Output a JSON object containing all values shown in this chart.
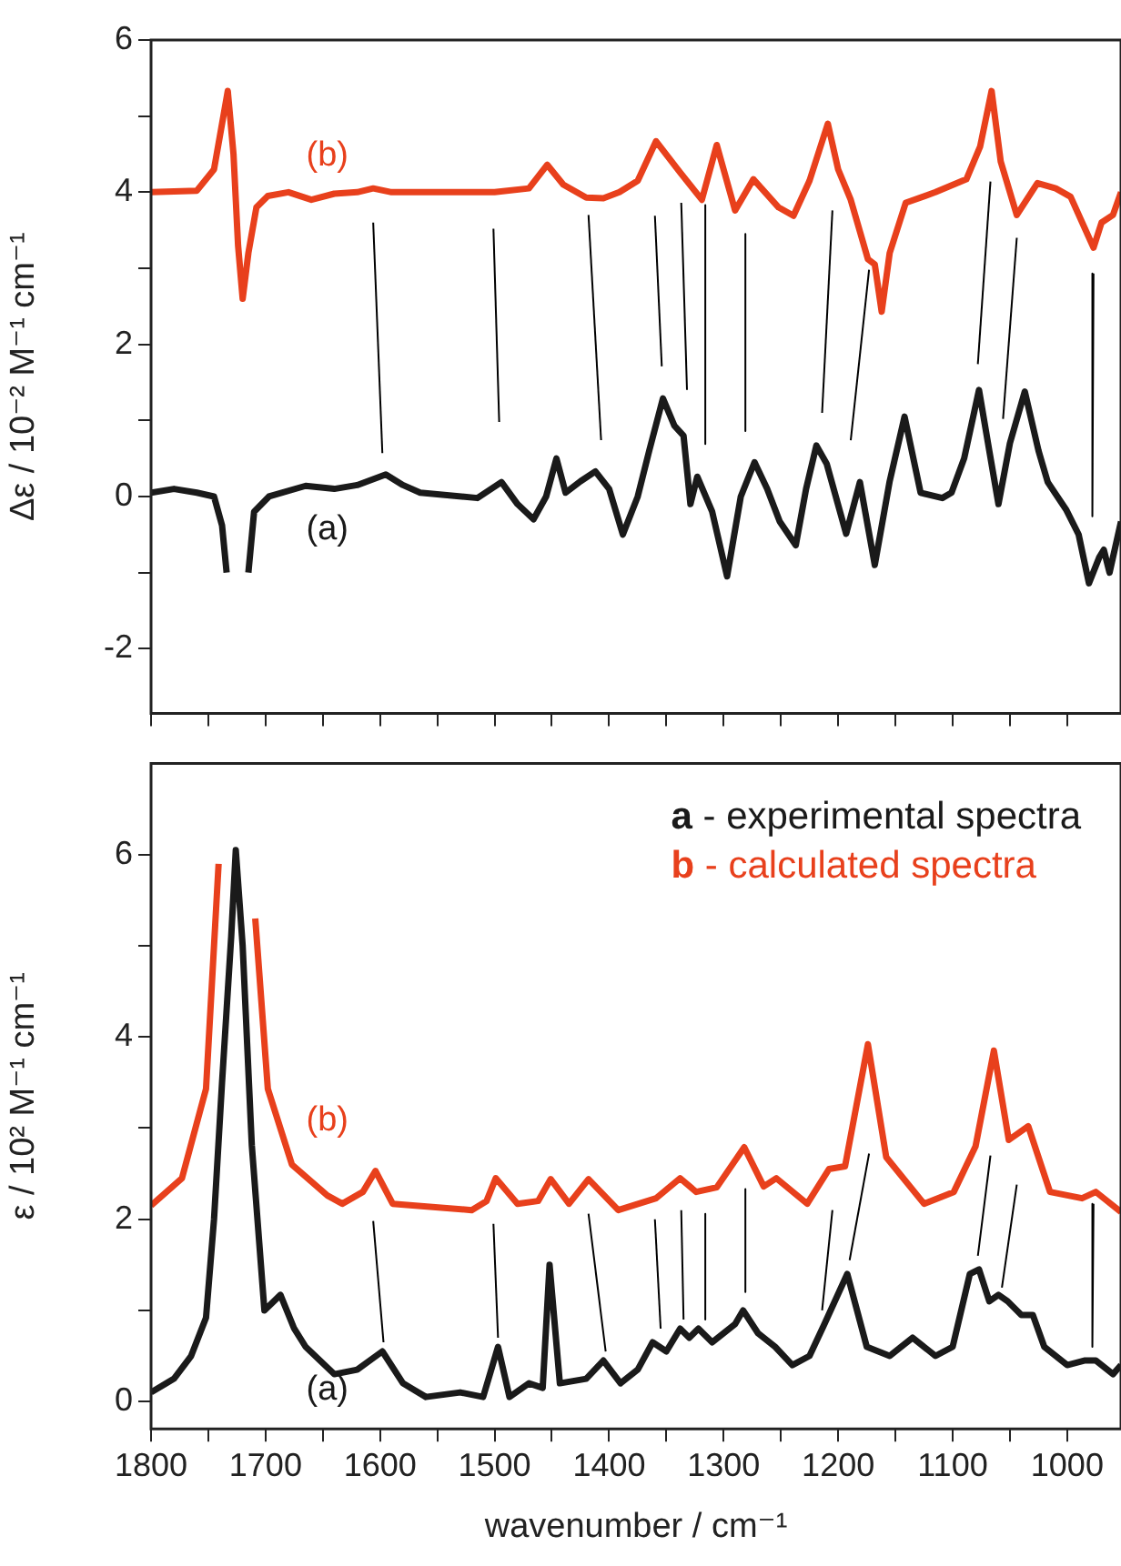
{
  "chart_data": [
    {
      "type": "line",
      "ylabel": "Δε / 10⁻² M⁻¹ cm⁻¹",
      "xlim": [
        1800,
        953
      ],
      "xticks": [
        {
          "value": 1800,
          "label": null
        },
        {
          "value": 1750,
          "label": null
        },
        {
          "value": 1700,
          "label": null
        },
        {
          "value": 1650,
          "label": null
        },
        {
          "value": 1600,
          "label": null
        },
        {
          "value": 1550,
          "label": null
        },
        {
          "value": 1500,
          "label": null
        },
        {
          "value": 1450,
          "label": null
        },
        {
          "value": 1400,
          "label": null
        },
        {
          "value": 1350,
          "label": null
        },
        {
          "value": 1300,
          "label": null
        },
        {
          "value": 1250,
          "label": null
        },
        {
          "value": 1200,
          "label": null
        },
        {
          "value": 1150,
          "label": null
        },
        {
          "value": 1100,
          "label": null
        },
        {
          "value": 1050,
          "label": null
        },
        {
          "value": 1000,
          "label": null
        }
      ],
      "ylim": [
        -2.85,
        6
      ],
      "yticks": [
        -2,
        {
          "value": -1,
          "label": null
        },
        0,
        {
          "value": 1,
          "label": null
        },
        2,
        {
          "value": 3,
          "label": null
        },
        4,
        {
          "value": 5,
          "label": null
        },
        6
      ],
      "tick_labels": "y",
      "grid": false,
      "line_style": "solid",
      "marker": "none",
      "annotations": [
        "(a)",
        "(b)"
      ],
      "series": [
        {
          "color": "#1a1a1a",
          "x": [
            1800,
            1780,
            1760,
            1745,
            1738,
            1734,
            1731,
            1725,
            1719,
            1715,
            1710,
            1697,
            1665,
            1640,
            1620,
            1595,
            1580,
            1565,
            1515,
            1494,
            1480,
            1466,
            1455,
            1446,
            1438,
            1425,
            1412,
            1400,
            1388,
            1375,
            1365,
            1353,
            1343,
            1335,
            1329,
            1323,
            1310,
            1297,
            1285,
            1273,
            1262,
            1251,
            1237,
            1228,
            1219,
            1210,
            1193,
            1181,
            1168,
            1155,
            1142,
            1128,
            1109,
            1101,
            1090,
            1077,
            1068,
            1060,
            1050,
            1037,
            1025,
            1017,
            1001,
            990,
            981,
            972,
            968,
            963,
            953
          ],
          "values": [
            0.05,
            0.1,
            0.05,
            0.0,
            -0.38,
            -1.0,
            null,
            null,
            null,
            -1.0,
            -0.2,
            0.0,
            0.14,
            0.1,
            0.15,
            0.29,
            0.15,
            0.05,
            -0.02,
            0.19,
            -0.1,
            -0.3,
            0.0,
            0.5,
            0.05,
            0.2,
            0.33,
            0.1,
            -0.5,
            0.0,
            0.6,
            1.29,
            0.93,
            0.8,
            -0.1,
            0.26,
            -0.2,
            -1.05,
            0.0,
            0.45,
            0.1,
            -0.33,
            -0.64,
            0.1,
            0.67,
            0.43,
            -0.49,
            0.19,
            -0.9,
            0.2,
            1.05,
            0.05,
            -0.02,
            0.05,
            0.5,
            1.4,
            0.6,
            -0.1,
            0.7,
            1.38,
            0.6,
            0.19,
            -0.17,
            -0.5,
            -1.14,
            -0.8,
            -0.7,
            -1.0,
            -0.33
          ]
        },
        {
          "color": "#e8401c",
          "x": [
            1800,
            1760,
            1745,
            1738,
            1733,
            1728,
            1724,
            1720,
            1715,
            1708,
            1698,
            1680,
            1660,
            1640,
            1620,
            1606,
            1590,
            1500,
            1470,
            1454,
            1440,
            1420,
            1405,
            1391,
            1375,
            1359,
            1338,
            1319,
            1306,
            1290,
            1274,
            1252,
            1239,
            1225,
            1209,
            1200,
            1189,
            1174,
            1168,
            1162,
            1155,
            1141,
            1115,
            1088,
            1076,
            1066,
            1058,
            1044,
            1026,
            1010,
            997,
            977,
            970,
            960,
            953
          ],
          "values": [
            4.0,
            4.02,
            4.3,
            4.9,
            5.33,
            4.5,
            3.3,
            2.6,
            3.2,
            3.8,
            3.95,
            4.0,
            3.9,
            3.98,
            4.0,
            4.05,
            4.0,
            4.0,
            4.05,
            4.36,
            4.1,
            3.93,
            3.92,
            4.0,
            4.15,
            4.67,
            4.26,
            3.9,
            4.62,
            3.76,
            4.17,
            3.8,
            3.69,
            4.15,
            4.9,
            4.3,
            3.9,
            3.12,
            3.05,
            2.43,
            3.2,
            3.86,
            4.0,
            4.17,
            4.6,
            5.33,
            4.4,
            3.7,
            4.12,
            4.05,
            3.94,
            3.27,
            3.6,
            3.7,
            4.0
          ]
        },
        {
          "type": "line",
          "color": "#000000",
          "x": [
            1606,
            1598
          ],
          "values": [
            3.6,
            0.57
          ]
        },
        {
          "type": "line",
          "color": "#000000",
          "x": [
            1501,
            1496
          ],
          "values": [
            3.52,
            0.98
          ]
        },
        {
          "type": "line",
          "color": "#000000",
          "x": [
            1418,
            1407
          ],
          "values": [
            3.7,
            0.74
          ]
        },
        {
          "type": "line",
          "color": "#000000",
          "x": [
            1360,
            1354
          ],
          "values": [
            3.69,
            1.71
          ]
        },
        {
          "type": "line",
          "color": "#000000",
          "x": [
            1337,
            1332
          ],
          "values": [
            3.86,
            1.4
          ]
        },
        {
          "type": "line",
          "color": "#000000",
          "x": [
            1316,
            1316
          ],
          "values": [
            3.83,
            0.69
          ]
        },
        {
          "type": "line",
          "color": "#000000",
          "x": [
            1281,
            1281
          ],
          "values": [
            3.45,
            0.86
          ]
        },
        {
          "type": "line",
          "color": "#000000",
          "x": [
            1205,
            1214
          ],
          "values": [
            3.76,
            1.1
          ]
        },
        {
          "type": "line",
          "color": "#000000",
          "x": [
            1173,
            1189
          ],
          "values": [
            2.98,
            0.74
          ]
        },
        {
          "type": "line",
          "color": "#000000",
          "x": [
            1067,
            1078
          ],
          "values": [
            4.14,
            1.74
          ]
        },
        {
          "type": "line",
          "color": "#000000",
          "x": [
            1044,
            1056
          ],
          "values": [
            3.4,
            1.02
          ]
        },
        {
          "type": "line",
          "color": "#000000",
          "x": [
            977,
            978
          ],
          "values": [
            2.93,
            -0.26
          ]
        }
      ]
    },
    {
      "type": "line",
      "ylabel": "ε / 10² M⁻¹ cm⁻¹",
      "xlabel": "wavenumber / cm⁻¹",
      "xlim": [
        1800,
        953
      ],
      "xticks": [
        1800,
        {
          "value": 1750,
          "label": null
        },
        1700,
        {
          "value": 1650,
          "label": null
        },
        1600,
        {
          "value": 1550,
          "label": null
        },
        1500,
        {
          "value": 1450,
          "label": null
        },
        1400,
        {
          "value": 1350,
          "label": null
        },
        1300,
        {
          "value": 1250,
          "label": null
        },
        1200,
        {
          "value": 1150,
          "label": null
        },
        1100,
        {
          "value": 1050,
          "label": null
        },
        1000
      ],
      "ylim": [
        -0.3,
        7
      ],
      "yticks": [
        0,
        {
          "value": 1,
          "label": null
        },
        2,
        {
          "value": 3,
          "label": null
        },
        4,
        {
          "value": 5,
          "label": null
        },
        6
      ],
      "grid": false,
      "legend": "top right",
      "line_style": "solid",
      "marker": "none",
      "annotations": [
        "(a)",
        "(b)"
      ],
      "series": [
        {
          "name": "a - experimental spectra",
          "color": "#1a1a1a",
          "x": [
            1800,
            1780,
            1765,
            1752,
            1745,
            1738,
            1730,
            1726,
            1720,
            1712,
            1701,
            1687,
            1675,
            1665,
            1640,
            1620,
            1598,
            1580,
            1560,
            1530,
            1510,
            1497,
            1487,
            1470,
            1458,
            1452,
            1443,
            1420,
            1405,
            1390,
            1375,
            1362,
            1350,
            1338,
            1330,
            1322,
            1310,
            1290,
            1283,
            1270,
            1255,
            1240,
            1225,
            1212,
            1192,
            1175,
            1155,
            1135,
            1115,
            1100,
            1085,
            1077,
            1068,
            1060,
            1052,
            1040,
            1030,
            1020,
            1000,
            985,
            975,
            960,
            953
          ],
          "values": [
            0.1,
            0.25,
            0.5,
            0.92,
            2.0,
            3.5,
            5.1,
            6.05,
            5.0,
            2.81,
            1.0,
            1.17,
            0.8,
            0.6,
            0.3,
            0.35,
            0.55,
            0.2,
            0.05,
            0.1,
            0.05,
            0.6,
            0.05,
            0.2,
            0.15,
            1.5,
            0.2,
            0.25,
            0.45,
            0.2,
            0.35,
            0.65,
            0.55,
            0.8,
            0.7,
            0.8,
            0.65,
            0.85,
            1.0,
            0.75,
            0.6,
            0.4,
            0.5,
            0.85,
            1.4,
            0.6,
            0.5,
            0.7,
            0.5,
            0.6,
            1.4,
            1.45,
            1.1,
            1.17,
            1.1,
            0.95,
            0.95,
            0.6,
            0.4,
            0.45,
            0.45,
            0.3,
            0.4
          ]
        },
        {
          "name": "b - calculated spectra",
          "color": "#e8401c",
          "x": [
            1800,
            1773,
            1752,
            1741,
            1736,
            1726,
            1716,
            1709,
            1698,
            1677,
            1646,
            1633,
            1615,
            1604,
            1589,
            1520,
            1507,
            1499,
            1480,
            1462,
            1451,
            1435,
            1418,
            1392,
            1359,
            1338,
            1324,
            1306,
            1282,
            1265,
            1254,
            1227,
            1208,
            1194,
            1174,
            1158,
            1125,
            1099,
            1080,
            1064,
            1051,
            1034,
            1015,
            987,
            975,
            953
          ],
          "values": [
            2.15,
            2.45,
            3.43,
            5.9,
            null,
            null,
            null,
            5.3,
            3.43,
            2.6,
            2.26,
            2.17,
            2.3,
            2.53,
            2.17,
            2.1,
            2.2,
            2.45,
            2.17,
            2.2,
            2.44,
            2.17,
            2.44,
            2.1,
            2.23,
            2.45,
            2.3,
            2.35,
            2.79,
            2.36,
            2.45,
            2.17,
            2.55,
            2.58,
            3.92,
            2.68,
            2.17,
            2.3,
            2.8,
            3.85,
            2.87,
            3.02,
            2.3,
            2.23,
            2.3,
            2.08
          ]
        },
        {
          "type": "line",
          "color": "#000000",
          "x": [
            1606,
            1597
          ],
          "values": [
            1.98,
            0.65
          ]
        },
        {
          "type": "line",
          "color": "#000000",
          "x": [
            1501,
            1497
          ],
          "values": [
            1.95,
            0.7
          ]
        },
        {
          "type": "line",
          "color": "#000000",
          "x": [
            1418,
            1403
          ],
          "values": [
            2.06,
            0.55
          ]
        },
        {
          "type": "line",
          "color": "#000000",
          "x": [
            1360,
            1355
          ],
          "values": [
            2.0,
            0.8
          ]
        },
        {
          "type": "line",
          "color": "#000000",
          "x": [
            1337,
            1335
          ],
          "values": [
            2.1,
            0.9
          ]
        },
        {
          "type": "line",
          "color": "#000000",
          "x": [
            1316,
            1316
          ],
          "values": [
            2.06,
            0.9
          ]
        },
        {
          "type": "line",
          "color": "#000000",
          "x": [
            1281,
            1281
          ],
          "values": [
            2.33,
            1.2
          ]
        },
        {
          "type": "line",
          "color": "#000000",
          "x": [
            1205,
            1214
          ],
          "values": [
            2.1,
            1.0
          ]
        },
        {
          "type": "line",
          "color": "#000000",
          "x": [
            1173,
            1190
          ],
          "values": [
            2.72,
            1.55
          ]
        },
        {
          "type": "line",
          "color": "#000000",
          "x": [
            1067,
            1078
          ],
          "values": [
            2.7,
            1.6
          ]
        },
        {
          "type": "line",
          "color": "#000000",
          "x": [
            1044,
            1057
          ],
          "values": [
            2.38,
            1.25
          ]
        },
        {
          "type": "line",
          "color": "#000000",
          "x": [
            977,
            978
          ],
          "values": [
            2.17,
            0.6
          ]
        }
      ]
    }
  ]
}
